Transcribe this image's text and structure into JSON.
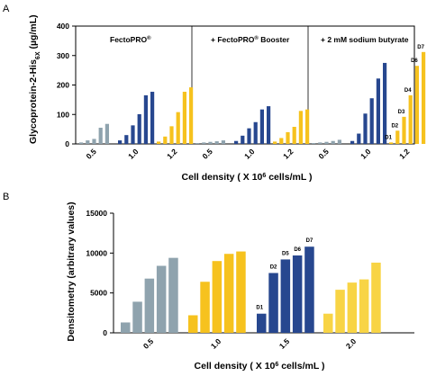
{
  "colors": {
    "grey": "#8fa3ae",
    "navy": "#27478f",
    "yellow": "#f6c21e",
    "gold": "#f8d445"
  },
  "panel_a": {
    "label": "A",
    "ylabel": "Glycoprotein-2-His",
    "ylabel_sub": "6X",
    "ylabel_units": "(µg/mL)",
    "xlabel_pre": "Cell density ( X 10",
    "xlabel_sup": "6",
    "xlabel_post": " cells/mL )",
    "titles": [
      "FectoPRO",
      "+ FectoPRO",
      "+ 2 mM sodium butyrate"
    ],
    "title_reg": "®",
    "title_suffix": " Booster"
  },
  "panel_b": {
    "label": "B",
    "ylabel": "Densitometry (arbitrary values)",
    "xlabel_pre": "Cell density ( X 10",
    "xlabel_sup": "6",
    "xlabel_post": " cells/mL )"
  },
  "chart_data": [
    {
      "type": "bar",
      "ylabel": "Glycoprotein-2-His6X (µg/mL)",
      "xlabel": "Cell density ( X 10^6 cells/mL )",
      "ylim": [
        0,
        400
      ],
      "yticks": [
        "0",
        "100",
        "200",
        "300",
        "400"
      ],
      "panels": [
        {
          "title": "FectoPRO®",
          "groups": [
            {
              "label": "0.5",
              "values": [
                5,
                12,
                17,
                55,
                68
              ]
            },
            {
              "label": "1.0",
              "values": [
                12,
                30,
                63,
                101,
                165,
                177
              ]
            },
            {
              "label": "1.2",
              "values": [
                8,
                25,
                60,
                108,
                177,
                192
              ]
            }
          ]
        },
        {
          "title": "+ FectoPRO® Booster",
          "groups": [
            {
              "label": "0.5",
              "values": [
                3,
                5,
                7,
                9,
                12
              ]
            },
            {
              "label": "1.0",
              "values": [
                10,
                28,
                53,
                74,
                117,
                128
              ]
            },
            {
              "label": "1.2",
              "values": [
                8,
                20,
                40,
                58,
                112,
                117
              ]
            }
          ]
        },
        {
          "title": "+ 2 mM sodium butyrate",
          "groups": [
            {
              "label": "0.5",
              "values": [
                3,
                5,
                7,
                10,
                14
              ]
            },
            {
              "label": "1.0",
              "values": [
                10,
                35,
                103,
                155,
                222,
                275
              ]
            },
            {
              "label": "1.2",
              "values": [
                5,
                45,
                92,
                165,
                265,
                312
              ]
            }
          ],
          "data_labels": [
            "D1",
            "D2",
            "D3",
            "D4",
            "D6",
            "D7"
          ]
        }
      ]
    },
    {
      "type": "bar",
      "ylabel": "Densitometry (arbitrary values)",
      "xlabel": "Cell density ( X 10^6 cells/mL )",
      "ylim": [
        0,
        15000
      ],
      "yticks": [
        "0",
        "5000",
        "10000",
        "15000"
      ],
      "groups": [
        {
          "label": "0.5",
          "color": "grey",
          "values": [
            1300,
            3900,
            6800,
            8400,
            9400
          ]
        },
        {
          "label": "1.0",
          "color": "yellow",
          "values": [
            2200,
            6400,
            9000,
            9900,
            10200
          ]
        },
        {
          "label": "1.5",
          "color": "navy",
          "values": [
            2400,
            7500,
            9200,
            9700,
            10800
          ]
        },
        {
          "label": "2.0",
          "color": "gold",
          "values": [
            2400,
            5400,
            6300,
            6700,
            8800
          ]
        }
      ],
      "data_labels": [
        "D1",
        "D2",
        "D5",
        "D6",
        "D7"
      ]
    }
  ]
}
